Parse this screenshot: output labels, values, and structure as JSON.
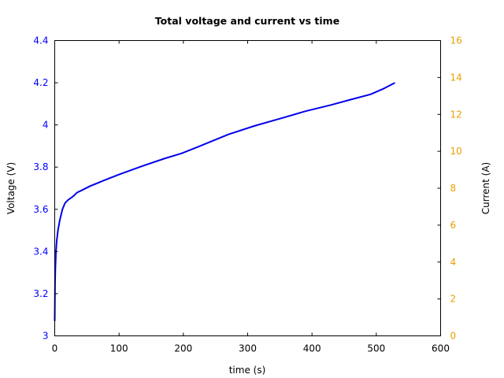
{
  "chart_data": {
    "type": "line",
    "title": "Total voltage and current vs time",
    "xlabel": "time (s)",
    "ylabel": "Voltage (V)",
    "y2label": "Current (A)",
    "xlim": [
      0,
      600
    ],
    "ylim": [
      3,
      4.4
    ],
    "y2lim": [
      0,
      16
    ],
    "x_ticks": [
      "0",
      "100",
      "200",
      "300",
      "400",
      "500",
      "600"
    ],
    "y_ticks": [
      "3",
      "3.2",
      "3.4",
      "3.6",
      "3.8",
      "4",
      "4.2",
      "4.4"
    ],
    "y2_ticks": [
      "0",
      "2",
      "4",
      "6",
      "8",
      "10",
      "12",
      "14",
      "16"
    ],
    "grid": false,
    "legend": null,
    "colors": {
      "voltage_line": "#0000ee",
      "left_axis_ticks": "#0000ff",
      "right_axis_ticks": "#e8a000",
      "frame": "#000000"
    },
    "series": [
      {
        "name": "Voltage",
        "axis": "left",
        "color": "#0000ee",
        "x": [
          0,
          0.5,
          1,
          2,
          3,
          5,
          8,
          12,
          16,
          21,
          28,
          35,
          42,
          55,
          75,
          100,
          136,
          170,
          197,
          230,
          270,
          310,
          356,
          390,
          430,
          460,
          491,
          510,
          529
        ],
        "y": [
          3.07,
          3.25,
          3.32,
          3.4,
          3.45,
          3.5,
          3.55,
          3.6,
          3.63,
          3.645,
          3.66,
          3.68,
          3.69,
          3.71,
          3.735,
          3.765,
          3.805,
          3.84,
          3.865,
          3.905,
          3.955,
          3.995,
          4.035,
          4.065,
          4.095,
          4.12,
          4.145,
          4.17,
          4.2
        ]
      }
    ]
  }
}
